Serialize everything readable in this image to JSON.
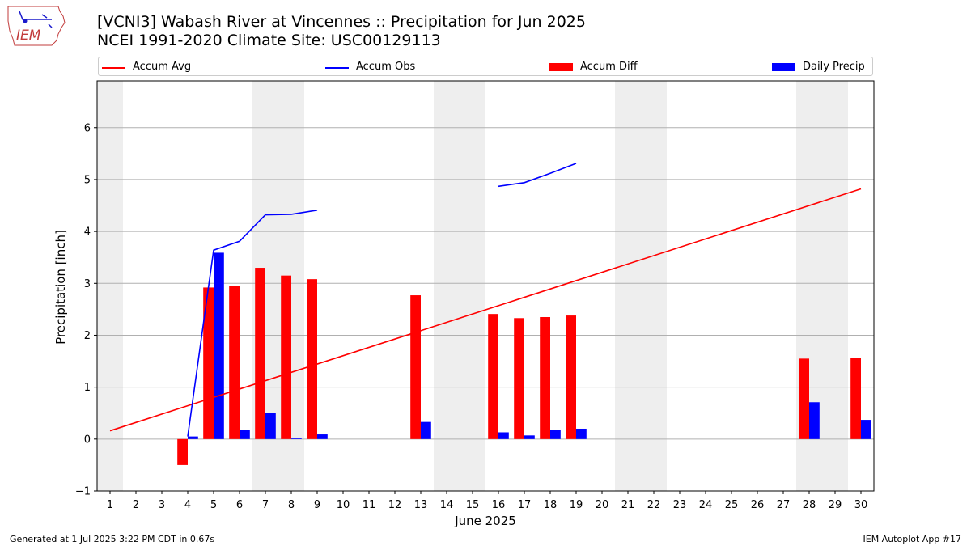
{
  "header": {
    "title_line1": "[VCNI3] Wabash River at Vincennes :: Precipitation for Jun 2025",
    "title_line2": "NCEI 1991-2020 Climate Site: USC00129113",
    "logo_text": "IEM"
  },
  "footer": {
    "left": "Generated at 1 Jul 2025 3:22 PM CDT in 0.67s",
    "right": "IEM Autoplot App #17"
  },
  "chart_data": {
    "type": "bar",
    "xlabel": "June 2025",
    "ylabel": "Precipitation [inch]",
    "xlim": [
      0.5,
      30.5
    ],
    "ylim": [
      -1.0,
      6.9
    ],
    "yticks": [
      -1,
      0,
      1,
      2,
      3,
      4,
      5,
      6
    ],
    "xticks": [
      1,
      2,
      3,
      4,
      5,
      6,
      7,
      8,
      9,
      10,
      11,
      12,
      13,
      14,
      15,
      16,
      17,
      18,
      19,
      20,
      21,
      22,
      23,
      24,
      25,
      26,
      27,
      28,
      29,
      30
    ],
    "grid": "horizontal",
    "legend_position": "top",
    "weekend_shading": [
      [
        0.5,
        1.5
      ],
      [
        6.5,
        8.5
      ],
      [
        13.5,
        15.5
      ],
      [
        20.5,
        22.5
      ],
      [
        27.5,
        29.5
      ]
    ],
    "colors": {
      "accum_avg": "#ff0000",
      "accum_obs": "#0000ff",
      "accum_diff": "#ff0000",
      "daily_precip": "#0000ff",
      "weekend": "#eeeeee",
      "grid": "#b0b0b0"
    },
    "legend": [
      {
        "key": "accum_avg",
        "label": "Accum Avg",
        "kind": "line"
      },
      {
        "key": "accum_obs",
        "label": "Accum Obs",
        "kind": "line"
      },
      {
        "key": "accum_diff",
        "label": "Accum Diff",
        "kind": "bar"
      },
      {
        "key": "daily_precip",
        "label": "Daily Precip",
        "kind": "bar"
      }
    ],
    "series": {
      "accum_avg": {
        "x": [
          1,
          30
        ],
        "y": [
          0.16,
          4.82
        ]
      },
      "accum_obs": {
        "segments": [
          {
            "x": [
              4,
              5,
              6,
              7,
              8,
              9
            ],
            "y": [
              0.05,
              3.64,
              3.81,
              4.32,
              4.33,
              4.41
            ]
          },
          {
            "x": [
              16,
              17,
              18,
              19
            ],
            "y": [
              4.87,
              4.94,
              5.12,
              5.31
            ]
          }
        ]
      },
      "accum_diff": {
        "x": [
          4,
          5,
          6,
          7,
          8,
          9,
          13,
          16,
          17,
          18,
          19,
          28,
          30
        ],
        "y": [
          -0.5,
          2.92,
          2.95,
          3.3,
          3.15,
          3.08,
          2.77,
          2.41,
          2.33,
          2.35,
          2.38,
          1.55,
          1.57
        ]
      },
      "daily_precip": {
        "x": [
          4,
          5,
          6,
          7,
          8,
          9,
          13,
          16,
          17,
          18,
          19,
          28,
          30
        ],
        "y": [
          0.05,
          3.59,
          0.17,
          0.51,
          0.01,
          0.09,
          0.33,
          0.13,
          0.07,
          0.18,
          0.2,
          0.71,
          0.37
        ]
      }
    }
  }
}
